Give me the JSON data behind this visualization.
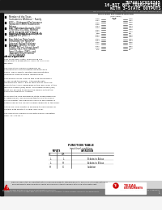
{
  "title_line1": "SN74ALVCH16245",
  "title_line2": "16-BIT BUS TRANSCEIVER",
  "title_line3": "WITH 3-STATE OUTPUTS",
  "part_number_line": "SN74ALVCH16245DLR",
  "bg_color": "#e8e8e8",
  "header_bg": "#1a1a1a",
  "header_text_color": "#ffffff",
  "body_bg": "#ffffff",
  "bullet_points": [
    "Member of the Texas Instruments Widebus™ Family",
    "EPIC™ (Enhanced-Performance Implanted CMOS) Submicron Process",
    "ESD Protection Exceeds 2000 V Per MIL-STD-883, Method 3015; Exceeds 200 V Using Machine Model (C = 200 pF, R = 0)",
    "Latch-Up Performance Exceeds 250 mA Per JESD 17",
    "Bus-Hold on Data Inputs Eliminates the Need for External Pullup/Pulldown Resistors",
    "Package Options Include Plastic 380-mil Shrink Small Outline (XL), Thin Shrink Small Outline (DBQ), and Thin Very Small Outline (GTV) Packages"
  ],
  "description_title": "description",
  "desc_lines": [
    "This 16-bit (dual-octal) nonblocking bus",
    "transceiver is designed for 1.65-V to 3.6-V VCC",
    "operation.",
    "",
    "The SN74ALVCH16245 is designed for",
    "asynchronous communication between data",
    "buses. This product's function implementation",
    "minimizes external timing requirements.",
    "",
    "This device can be used as two 8-bit transceivers",
    "or one 16-bit transceiver. It transmits data",
    "transparently from A bus to the B bus or from the",
    "B bus to the A bus, depending on the logic level at the",
    "direction control (DIR) input. The output-enable (OE)",
    "input can be used to disable the device so that the",
    "buses are effectively isolated.",
    "",
    "To ensure the high-impedance state during power-up",
    "or power-down, OE should be tied to VCC through a",
    "pullup resistor; the maximum value of the resistor is",
    "determined by the current-sinking capability of the driver.",
    "",
    "Active bus hold circuitry is provided to hold unused or",
    "floating data inputs at a valid logic level.",
    "",
    "The SN74ALVCH16245 is characterized for operation",
    "from -40°C to 85°C."
  ],
  "func_table_title": "FUNCTION TABLE",
  "func_table_subtitle": "input level conditions",
  "func_rows": [
    [
      "L",
      "L",
      "B data to A bus"
    ],
    [
      "L",
      "H",
      "A data to B bus"
    ],
    [
      "H",
      "X",
      "Isolation"
    ]
  ],
  "pin_left": [
    "1A08",
    "1A07",
    "1A06",
    "1A05",
    "1A04",
    "1A03",
    "1A02",
    "1A01",
    "GND",
    "2A01",
    "2A02",
    "2A03",
    "2A04",
    "2A05",
    "2A06",
    "2A07",
    "2A08",
    "VCC"
  ],
  "pin_nums_left": [
    "32",
    "30",
    "28",
    "26",
    "24",
    "22",
    "20",
    "18",
    "17",
    "15",
    "13",
    "11",
    "9",
    "7",
    "5",
    "3",
    "1",
    "33"
  ],
  "pin_nums_right": [
    "31",
    "29",
    "27",
    "25",
    "23",
    "21",
    "19",
    "18",
    "16",
    "14",
    "12",
    "10",
    "8",
    "6",
    "4",
    "2",
    "",
    "34"
  ],
  "pin_right": [
    "1B08",
    "1B07",
    "1B06",
    "1B05",
    "1B04",
    "1B03",
    "1B02",
    "1B01",
    "DIR",
    "2B01",
    "2B02",
    "2B03",
    "2B04",
    "2B05",
    "2B06",
    "2B07",
    "2B08",
    "OE"
  ],
  "footer_notice": "Please be aware that an important notice concerning availability, standard warranty, and use in critical applications of Texas Instruments semiconductor products and disclaimers thereto appears at the end of this data sheet.",
  "footer_note1": "EPIC and Widebus are trademarks of Texas Instruments Incorporated.",
  "footer_note2": "Information is current as of publication date.",
  "copyright": "Copyright © 1998, Texas Instruments Incorporated",
  "page_num": "1",
  "ti_logo_color": "#cc0000",
  "accent_color": "#cc0000"
}
